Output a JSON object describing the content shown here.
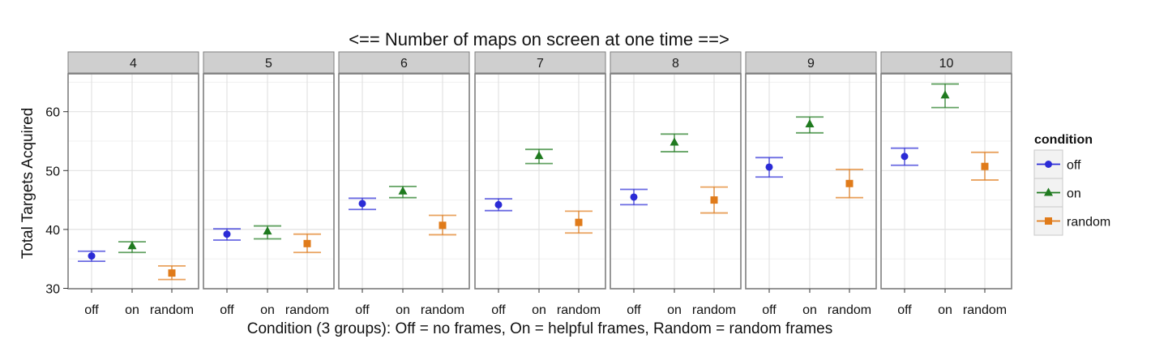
{
  "chart_data": {
    "type": "scatter",
    "title": "<== Number of maps on screen at one time ==>",
    "xlabel": "Condition (3 groups): Off = no frames, On = helpful frames, Random = random frames",
    "ylabel": "Total Targets Acquired",
    "ylim": [
      30,
      67
    ],
    "yticks": [
      30,
      40,
      50,
      60
    ],
    "categories": [
      "off",
      "on",
      "random"
    ],
    "panels": [
      "4",
      "5",
      "6",
      "7",
      "8",
      "9",
      "10"
    ],
    "grid": true,
    "legend": {
      "title": "condition",
      "placement": "right",
      "entries": [
        "off",
        "on",
        "random"
      ]
    },
    "series": [
      {
        "name": "off",
        "color": "#2b2bd6",
        "marker": "circle",
        "values": [
          35.5,
          39.2,
          44.4,
          44.2,
          45.5,
          50.6,
          52.4
        ],
        "lower": [
          34.6,
          38.2,
          43.4,
          43.2,
          44.2,
          48.9,
          50.9
        ],
        "upper": [
          36.3,
          40.1,
          45.3,
          45.2,
          46.8,
          52.2,
          53.8
        ]
      },
      {
        "name": "on",
        "color": "#1f7a1f",
        "marker": "triangle",
        "values": [
          37.2,
          39.7,
          46.5,
          52.5,
          54.8,
          57.9,
          62.8
        ],
        "lower": [
          36.1,
          38.4,
          45.4,
          51.2,
          53.2,
          56.4,
          60.7
        ],
        "upper": [
          37.9,
          40.6,
          47.3,
          53.6,
          56.2,
          59.1,
          64.7
        ]
      },
      {
        "name": "random",
        "color": "#e07b1a",
        "marker": "square",
        "values": [
          32.6,
          37.6,
          40.7,
          41.2,
          45.0,
          47.8,
          50.7
        ],
        "lower": [
          31.5,
          36.1,
          39.1,
          39.4,
          42.8,
          45.4,
          48.4
        ],
        "upper": [
          33.8,
          39.2,
          42.4,
          43.1,
          47.2,
          50.2,
          53.1
        ]
      }
    ]
  }
}
